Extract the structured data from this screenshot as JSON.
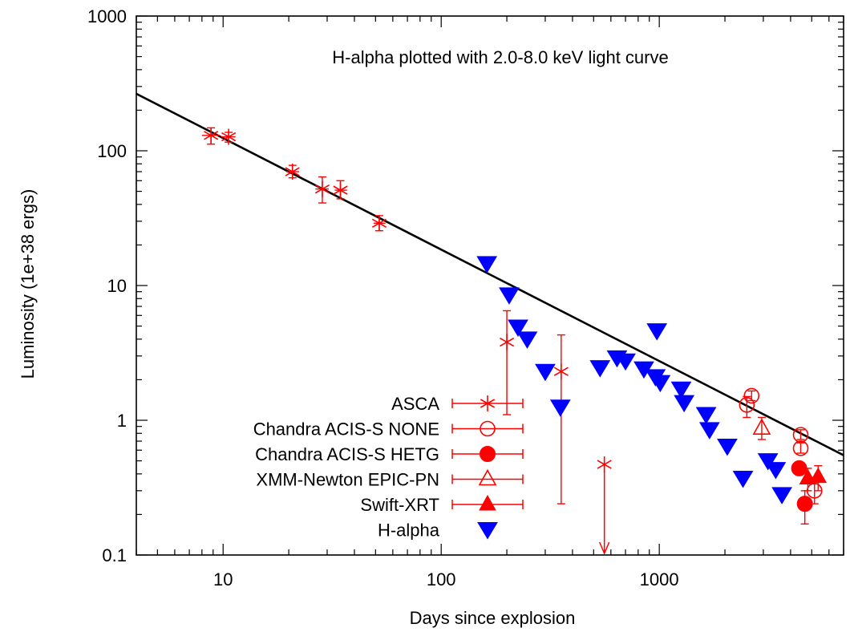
{
  "chart_data": {
    "type": "scatter",
    "title": "",
    "annotation": "H-alpha plotted with 2.0-8.0 keV light curve",
    "xlabel": "Days since explosion",
    "ylabel": "Luminosity (1e+38 ergs)",
    "xscale": "log",
    "yscale": "log",
    "xlim": [
      4,
      7000
    ],
    "ylim": [
      0.1,
      1000
    ],
    "xticks": [
      10,
      100,
      1000
    ],
    "xtick_labels": [
      "10",
      "100",
      "1000"
    ],
    "yticks": [
      0.1,
      1,
      10,
      100,
      1000
    ],
    "ytick_labels": [
      "0.1",
      "1",
      "10",
      "100",
      "1000"
    ],
    "grid": false,
    "legend_position": "bottom-left",
    "fit_line": {
      "x": [
        4,
        7000
      ],
      "y": [
        265,
        0.55
      ]
    },
    "colors": {
      "red": "#ff0000",
      "blue": "#0000ff",
      "line": "#000000"
    },
    "series": [
      {
        "name": "ASCA",
        "marker": "asterisk",
        "color": "#ff0000",
        "points": [
          {
            "x": 8.8,
            "y": 130,
            "ylo": 112,
            "yhi": 148,
            "xlo": 8.0,
            "xhi": 9.6
          },
          {
            "x": 10.6,
            "y": 127,
            "ylo": 116,
            "yhi": 137,
            "xlo": 9.8,
            "xhi": 11.4
          },
          {
            "x": 20.8,
            "y": 70,
            "ylo": 63,
            "yhi": 78,
            "xlo": 19.5,
            "xhi": 22.3
          },
          {
            "x": 28.5,
            "y": 52,
            "ylo": 41,
            "yhi": 64,
            "xlo": 26.5,
            "xhi": 30.5
          },
          {
            "x": 34.5,
            "y": 51,
            "ylo": 44,
            "yhi": 60,
            "xlo": 32.5,
            "xhi": 37
          },
          {
            "x": 52,
            "y": 29,
            "ylo": 25.5,
            "yhi": 33,
            "xlo": 49,
            "xhi": 55.5
          },
          {
            "x": 200,
            "y": 3.8,
            "ylo": 1.1,
            "yhi": 6.5
          },
          {
            "x": 355,
            "y": 2.3,
            "ylo": 0.24,
            "yhi": 4.3
          },
          {
            "x": 560,
            "y": 0.47,
            "upper_limit": true
          }
        ]
      },
      {
        "name": "Chandra ACIS-S NONE",
        "marker": "circle-open",
        "color": "#ff0000",
        "points": [
          {
            "x": 2520,
            "y": 1.3,
            "ylo": 1.05,
            "yhi": 1.5
          },
          {
            "x": 2650,
            "y": 1.52,
            "ylo": 1.4,
            "yhi": 1.65
          },
          {
            "x": 4450,
            "y": 0.78,
            "ylo": 0.72,
            "yhi": 0.85
          },
          {
            "x": 4450,
            "y": 0.62,
            "ylo": 0.57,
            "yhi": 0.68
          },
          {
            "x": 5150,
            "y": 0.3,
            "ylo": 0.24,
            "yhi": 0.37
          }
        ]
      },
      {
        "name": "Chandra ACIS-S HETG",
        "marker": "circle-filled",
        "color": "#ff0000",
        "points": [
          {
            "x": 4380,
            "y": 0.44,
            "ylo": 0.4,
            "yhi": 0.48
          },
          {
            "x": 4650,
            "y": 0.24,
            "ylo": 0.17,
            "yhi": 0.3
          }
        ]
      },
      {
        "name": "XMM-Newton EPIC-PN",
        "marker": "triangle-open",
        "color": "#ff0000",
        "points": [
          {
            "x": 2950,
            "y": 0.87,
            "ylo": 0.72,
            "yhi": 1.05
          }
        ]
      },
      {
        "name": "Swift-XRT",
        "marker": "triangle-filled",
        "color": "#ff0000",
        "points": [
          {
            "x": 4800,
            "y": 0.37,
            "ylo": 0.3,
            "yhi": 0.44
          },
          {
            "x": 5350,
            "y": 0.38,
            "ylo": 0.3,
            "yhi": 0.46
          }
        ]
      },
      {
        "name": "H-alpha",
        "marker": "triangle-down-filled",
        "color": "#0000ff",
        "points": [
          {
            "x": 162,
            "y": 14.5
          },
          {
            "x": 205,
            "y": 8.5
          },
          {
            "x": 225,
            "y": 4.9
          },
          {
            "x": 248,
            "y": 4.0
          },
          {
            "x": 300,
            "y": 2.3
          },
          {
            "x": 352,
            "y": 1.25
          },
          {
            "x": 535,
            "y": 2.45
          },
          {
            "x": 640,
            "y": 2.9
          },
          {
            "x": 700,
            "y": 2.75
          },
          {
            "x": 850,
            "y": 2.4
          },
          {
            "x": 975,
            "y": 4.6
          },
          {
            "x": 960,
            "y": 2.1
          },
          {
            "x": 1010,
            "y": 1.9
          },
          {
            "x": 1260,
            "y": 1.7
          },
          {
            "x": 1300,
            "y": 1.35
          },
          {
            "x": 1640,
            "y": 1.1
          },
          {
            "x": 1700,
            "y": 0.85
          },
          {
            "x": 2050,
            "y": 0.64
          },
          {
            "x": 2420,
            "y": 0.37
          },
          {
            "x": 3150,
            "y": 0.5
          },
          {
            "x": 3420,
            "y": 0.43
          },
          {
            "x": 3650,
            "y": 0.28
          }
        ]
      }
    ]
  }
}
